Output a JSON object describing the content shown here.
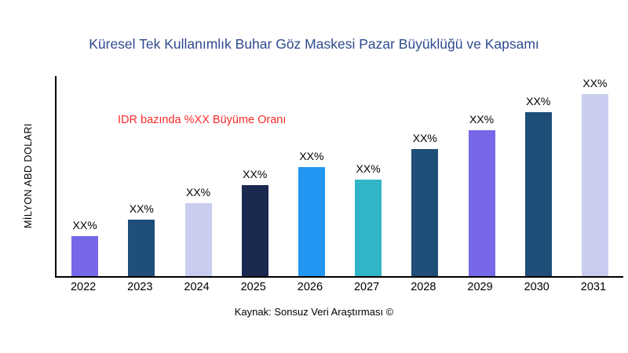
{
  "chart_data": {
    "type": "bar",
    "title": "Küresel Tek Kullanımlık Buhar Göz Maskesi Pazar Büyüklüğü ve Kapsamı",
    "ylabel": "MİLYON ABD DOLARI",
    "xlabel": "",
    "categories": [
      "2022",
      "2023",
      "2024",
      "2025",
      "2026",
      "2027",
      "2028",
      "2029",
      "2030",
      "2031"
    ],
    "values": [
      22,
      31,
      40,
      50,
      60,
      53,
      70,
      80,
      90,
      100
    ],
    "value_labels": [
      "XX%",
      "XX%",
      "XX%",
      "XX%",
      "XX%",
      "XX%",
      "XX%",
      "XX%",
      "XX%",
      "XX%"
    ],
    "bar_colors": [
      "#7668e8",
      "#1f4e79",
      "#c9cef0",
      "#1b2951",
      "#2196f3",
      "#30b5c8",
      "#1f4e79",
      "#7668e8",
      "#1f4e79",
      "#c9cef0"
    ],
    "ylim": [
      0,
      100
    ],
    "grid": "off",
    "legend": "none",
    "annotation": "IDR bazında %XX Büyüme Oranı",
    "annotation_color": "#fb2b2b",
    "title_color": "#2d4b8e",
    "source": "Kaynak: Sonsuz Veri Araştırması ©"
  }
}
